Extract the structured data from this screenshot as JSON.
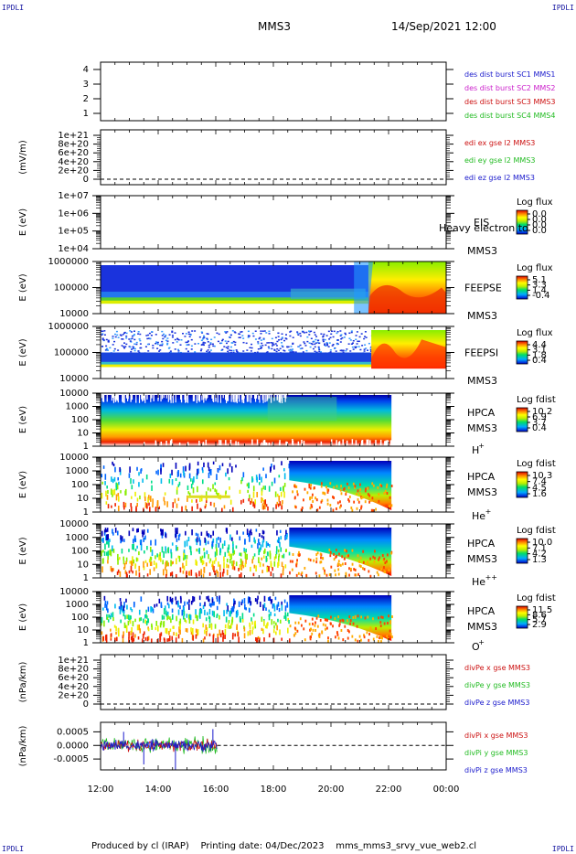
{
  "header": {
    "corner_tl": "IPDLI",
    "corner_tr": "IPDLI",
    "corner_bl": "IPDLI",
    "corner_br": "IPDLI",
    "spacecraft": "MMS3",
    "datetime": "14/Sep/2021 12:00"
  },
  "footer": {
    "text": "Produced by cl (IRAP)    Printing date: 04/Dec/2023    mms_mms3_srvy_vue_web2.cl"
  },
  "x_axis": {
    "range_hours": [
      12,
      24
    ],
    "ticks": [
      "12:00",
      "14:00",
      "16:00",
      "18:00",
      "20:00",
      "22:00",
      "00:00"
    ]
  },
  "colors": {
    "blue": "#1a1acc",
    "magenta": "#cc22cc",
    "red": "#cc1111",
    "green": "#22bb22"
  },
  "chart_data": [
    {
      "type": "line",
      "id": "dist",
      "ylabel": "",
      "yticks": [
        "4",
        "3",
        "2",
        "1"
      ],
      "ylim": [
        0.5,
        4.5
      ],
      "legend": [
        {
          "text": "des dist burst SC1 MMS1",
          "color": "#1a1acc"
        },
        {
          "text": "des dist burst SC2 MMS2",
          "color": "#cc22cc"
        },
        {
          "text": "des dist burst SC3 MMS3",
          "color": "#cc1111"
        },
        {
          "text": "des dist burst SC4 MMS4",
          "color": "#22bb22"
        }
      ]
    },
    {
      "type": "line",
      "id": "edi",
      "ylabel": "(mV/m)",
      "yticks": [
        "1e+21",
        "8e+20",
        "6e+20",
        "4e+20",
        "2e+20",
        "0"
      ],
      "dashed_zero": true,
      "legend": [
        {
          "text": "edi ex gse l2 MMS3",
          "color": "#cc1111"
        },
        {
          "text": "edi ey gse l2 MMS3",
          "color": "#22bb22"
        },
        {
          "text": "edi ez gse l2 MMS3",
          "color": "#1a1acc"
        }
      ]
    },
    {
      "type": "heatmap",
      "id": "eis",
      "ylabel": "E (eV)",
      "yticks": [
        "1e+07",
        "1e+06",
        "1e+05",
        "1e+04"
      ],
      "instrument": "EIS",
      "spacecraft": "MMS3",
      "overlay_label": "Heavy electron to",
      "colorbar_title": "Log flux",
      "colorbar_ticks": [
        "0.0",
        "0.0",
        "0.0",
        "0.0"
      ]
    },
    {
      "type": "heatmap",
      "id": "feepse",
      "ylabel": "E (eV)",
      "yticks": [
        "1000000",
        "100000",
        "10000"
      ],
      "instrument": "FEEPSE",
      "spacecraft": "MMS3",
      "colorbar_title": "Log flux",
      "colorbar_ticks": [
        "5.1",
        "3.3",
        "1.4",
        "-0.4"
      ]
    },
    {
      "type": "heatmap",
      "id": "feepsi",
      "ylabel": "E (eV)",
      "yticks": [
        "1000000",
        "100000",
        "10000"
      ],
      "instrument": "FEEPSI",
      "spacecraft": "MMS3",
      "colorbar_title": "Log flux",
      "colorbar_ticks": [
        "4.4",
        "3.1",
        "1.8",
        "0.4"
      ]
    },
    {
      "type": "heatmap",
      "id": "hpca_h",
      "ylabel": "E (eV)",
      "yticks": [
        "10000",
        "1000",
        "100",
        "10",
        "1"
      ],
      "instrument": "HPCA",
      "spacecraft": "MMS3",
      "species": "H",
      "charge": "+",
      "data_end_hour": 22.1,
      "colorbar_title": "Log fdist",
      "colorbar_ticks": [
        "10.2",
        "6.9",
        "3.7",
        "0.4"
      ]
    },
    {
      "type": "heatmap",
      "id": "hpca_he",
      "ylabel": "E (eV)",
      "yticks": [
        "10000",
        "1000",
        "100",
        "10",
        "1"
      ],
      "instrument": "HPCA",
      "spacecraft": "MMS3",
      "species": "He",
      "charge": "+",
      "data_end_hour": 22.1,
      "colorbar_title": "Log fdist",
      "colorbar_ticks": [
        "10.3",
        "7.4",
        "4.5",
        "1.6"
      ]
    },
    {
      "type": "heatmap",
      "id": "hpca_he2",
      "ylabel": "E (eV)",
      "yticks": [
        "10000",
        "1000",
        "100",
        "10",
        "1"
      ],
      "instrument": "HPCA",
      "spacecraft": "MMS3",
      "species": "He",
      "charge": "++",
      "data_end_hour": 22.1,
      "colorbar_title": "Log fdist",
      "colorbar_ticks": [
        "10.0",
        "7.1",
        "4.2",
        "1.3"
      ]
    },
    {
      "type": "heatmap",
      "id": "hpca_o",
      "ylabel": "E (eV)",
      "yticks": [
        "10000",
        "1000",
        "100",
        "10",
        "1"
      ],
      "instrument": "HPCA",
      "spacecraft": "MMS3",
      "species": "O",
      "charge": "+",
      "data_end_hour": 22.1,
      "colorbar_title": "Log fdist",
      "colorbar_ticks": [
        "11.5",
        "8.6",
        "5.7",
        "2.9"
      ]
    },
    {
      "type": "line",
      "id": "divpe",
      "ylabel": "(nPa/km)",
      "yticks": [
        "1e+21",
        "8e+20",
        "6e+20",
        "4e+20",
        "2e+20",
        "0"
      ],
      "dashed_zero": true,
      "legend": [
        {
          "text": "divPe x gse MMS3",
          "color": "#cc1111"
        },
        {
          "text": "divPe y gse MMS3",
          "color": "#22bb22"
        },
        {
          "text": "divPe z gse MMS3",
          "color": "#1a1acc"
        }
      ]
    },
    {
      "type": "line",
      "id": "divpi",
      "ylabel": "(nPa/km)",
      "yticks": [
        "0.0005",
        "0.0000",
        "-0.0005"
      ],
      "ylim": [
        -0.0009,
        0.00085
      ],
      "data_end_hour": 16.05,
      "dashed_zero": true,
      "legend": [
        {
          "text": "divPi x gse MMS3",
          "color": "#cc1111"
        },
        {
          "text": "divPi y gse MMS3",
          "color": "#22bb22"
        },
        {
          "text": "divPi z gse MMS3",
          "color": "#1a1acc"
        }
      ]
    }
  ]
}
